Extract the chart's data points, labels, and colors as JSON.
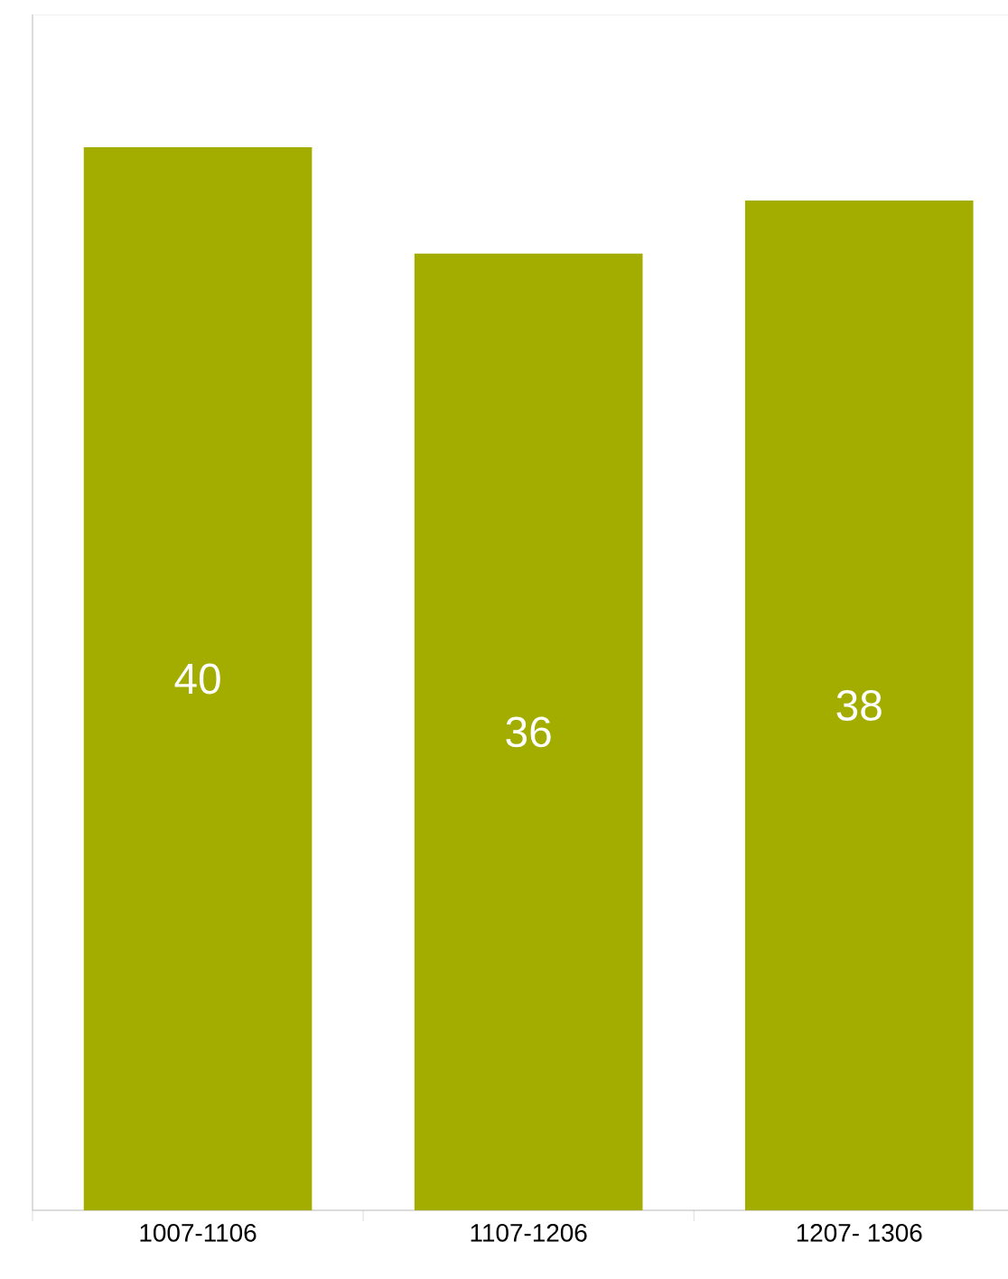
{
  "chart_data": {
    "type": "bar",
    "categories": [
      "1007-1106",
      "1107-1206",
      "1207- 1306"
    ],
    "values": [
      40,
      36,
      38
    ],
    "color": "#a3ad00",
    "ylim": [
      0,
      45
    ],
    "data_labels": true
  }
}
